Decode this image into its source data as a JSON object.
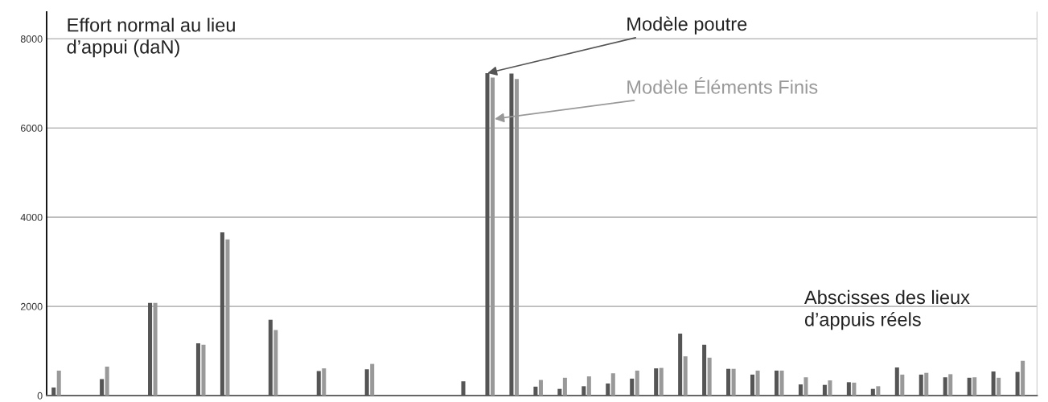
{
  "chart_data": {
    "type": "bar",
    "ylabel": "Effort normal au lieu\nd’appui (daN)",
    "xlabel": "Abscisses des lieux\nd’appuis réels",
    "categories": [
      null,
      null,
      null,
      null,
      null,
      null,
      null,
      null,
      null,
      null,
      null,
      null,
      null,
      null,
      null,
      null,
      null,
      null,
      null,
      null,
      null,
      null,
      null,
      null,
      null,
      null,
      null,
      null,
      null,
      null,
      null,
      null,
      null,
      null,
      null,
      null,
      null,
      null,
      null,
      null,
      null
    ],
    "series": [
      {
        "name": "Modèle poutre",
        "color": "#555555",
        "values": [
          180,
          null,
          370,
          null,
          2080,
          null,
          1170,
          3660,
          null,
          1700,
          null,
          550,
          null,
          590,
          null,
          null,
          null,
          320,
          7230,
          7220,
          200,
          150,
          210,
          270,
          380,
          610,
          1390,
          1140,
          600,
          470,
          560,
          250,
          240,
          300,
          150,
          630,
          470,
          410,
          400,
          540,
          530
        ]
      },
      {
        "name": "Modèle Éléments Finis",
        "color": "#999999",
        "values": [
          560,
          null,
          650,
          null,
          2080,
          null,
          1140,
          3500,
          null,
          1470,
          null,
          610,
          null,
          710,
          null,
          null,
          null,
          null,
          7130,
          7100,
          350,
          400,
          430,
          500,
          560,
          620,
          880,
          850,
          600,
          560,
          560,
          410,
          340,
          290,
          210,
          470,
          510,
          480,
          410,
          400,
          780
        ]
      }
    ],
    "ylim": [
      0,
      8600
    ],
    "yticks": [
      0,
      2000,
      4000,
      6000,
      8000
    ],
    "grid": "y",
    "tick_labels": "y"
  }
}
